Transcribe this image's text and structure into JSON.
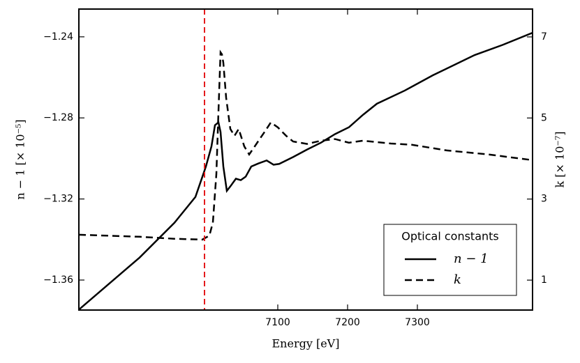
{
  "chart_data": {
    "type": "line",
    "xlabel": "Energy  [eV]",
    "ylabel": "n − 1  [× 10⁻⁵]",
    "y2label": "k  [× 10⁻⁷]",
    "xlim": [
      6815,
      7465
    ],
    "xticks": [
      7100,
      7200,
      7300
    ],
    "ylim": [
      -1.3748,
      -1.2263
    ],
    "yticks": [
      {
        "value": -1.36,
        "label": "−1.36"
      },
      {
        "value": -1.32,
        "label": "−1.32"
      },
      {
        "value": -1.28,
        "label": "−1.28"
      },
      {
        "value": -1.24,
        "label": "−1.24"
      }
    ],
    "y2lim": [
      0.262,
      7.687
    ],
    "y2ticks": [
      1,
      3,
      5,
      7
    ],
    "vline": {
      "x": 6995,
      "color": "#e41a1c"
    },
    "legend": {
      "title": "Optical constants",
      "position": "lower right"
    },
    "series": [
      {
        "name": "n − 1",
        "color": "#000000",
        "dash": "solid",
        "x": [
          6815,
          6902,
          6952,
          6982,
          6997,
          7005,
          7010,
          7015,
          7018,
          7022,
          7027,
          7032,
          7040,
          7047,
          7054,
          7062,
          7072,
          7084,
          7094,
          7102,
          7122,
          7142,
          7162,
          7182,
          7202,
          7222,
          7242,
          7282,
          7322,
          7382,
          7422,
          7465
        ],
        "values": [
          -1.3746,
          -1.3489,
          -1.3317,
          -1.319,
          -1.304,
          -1.294,
          -1.2836,
          -1.2822,
          -1.287,
          -1.304,
          -1.316,
          -1.3138,
          -1.31,
          -1.3107,
          -1.309,
          -1.304,
          -1.3025,
          -1.301,
          -1.3031,
          -1.3027,
          -1.2993,
          -1.2956,
          -1.2922,
          -1.288,
          -1.2846,
          -1.2785,
          -1.273,
          -1.2665,
          -1.259,
          -1.249,
          -1.244,
          -1.238
        ]
      },
      {
        "name": "k",
        "color": "#000000",
        "dash": "dashed",
        "axis": "y2",
        "x": [
          6815,
          6902,
          6952,
          6992,
          7002,
          7007,
          7012,
          7015,
          7018,
          7020,
          7022,
          7026,
          7032,
          7038,
          7044,
          7052,
          7059,
          7067,
          7074,
          7082,
          7090,
          7100,
          7112,
          7122,
          7142,
          7162,
          7182,
          7202,
          7222,
          7262,
          7292,
          7342,
          7402,
          7465
        ],
        "values": [
          2.12,
          2.07,
          2.02,
          2.0,
          2.1,
          2.42,
          3.62,
          5.16,
          6.62,
          6.57,
          6.36,
          5.5,
          4.73,
          4.56,
          4.73,
          4.3,
          4.1,
          4.3,
          4.48,
          4.68,
          4.89,
          4.77,
          4.56,
          4.42,
          4.36,
          4.44,
          4.48,
          4.39,
          4.44,
          4.37,
          4.34,
          4.2,
          4.1,
          3.96
        ]
      }
    ]
  }
}
